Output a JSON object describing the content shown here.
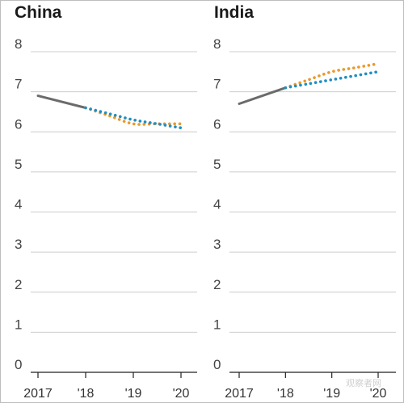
{
  "chart_data": [
    {
      "type": "line",
      "title": "China",
      "ylim": [
        0,
        8
      ],
      "yticks": [
        "0",
        "1",
        "2",
        "3",
        "4",
        "5",
        "6",
        "7",
        "8"
      ],
      "x_range": [
        2017,
        2020
      ],
      "xticks": [
        {
          "x": 2017,
          "label": "2017"
        },
        {
          "x": 2018,
          "label": "'18"
        },
        {
          "x": 2019,
          "label": "'19"
        },
        {
          "x": 2020,
          "label": "'20"
        }
      ],
      "grid": true,
      "series": [
        {
          "style": "solid",
          "color": "#6b6b6b",
          "x": [
            2017,
            2018
          ],
          "y": [
            6.9,
            6.6
          ]
        },
        {
          "style": "dotted",
          "color": "#e89a2c",
          "x": [
            2018,
            2018.5,
            2019,
            2019.5,
            2020
          ],
          "y": [
            6.6,
            6.4,
            6.2,
            6.2,
            6.2
          ]
        },
        {
          "style": "dotted",
          "color": "#1f8fc4",
          "x": [
            2018,
            2018.5,
            2019,
            2019.5,
            2020
          ],
          "y": [
            6.6,
            6.45,
            6.3,
            6.2,
            6.1
          ]
        }
      ]
    },
    {
      "type": "line",
      "title": "India",
      "ylim": [
        0,
        8
      ],
      "yticks": [
        "0",
        "1",
        "2",
        "3",
        "4",
        "5",
        "6",
        "7",
        "8"
      ],
      "x_range": [
        2017,
        2020
      ],
      "xticks": [
        {
          "x": 2017,
          "label": "2017"
        },
        {
          "x": 2018,
          "label": "'18"
        },
        {
          "x": 2019,
          "label": "'19"
        },
        {
          "x": 2020,
          "label": "'20"
        }
      ],
      "grid": true,
      "series": [
        {
          "style": "solid",
          "color": "#6b6b6b",
          "x": [
            2017,
            2018
          ],
          "y": [
            6.7,
            7.1
          ]
        },
        {
          "style": "dotted",
          "color": "#e89a2c",
          "x": [
            2018,
            2018.5,
            2019,
            2019.5,
            2020
          ],
          "y": [
            7.1,
            7.3,
            7.5,
            7.6,
            7.7
          ]
        },
        {
          "style": "dotted",
          "color": "#1f8fc4",
          "x": [
            2018,
            2018.5,
            2019,
            2019.5,
            2020
          ],
          "y": [
            7.1,
            7.2,
            7.3,
            7.4,
            7.5
          ]
        }
      ]
    }
  ],
  "watermark": "观察者网"
}
